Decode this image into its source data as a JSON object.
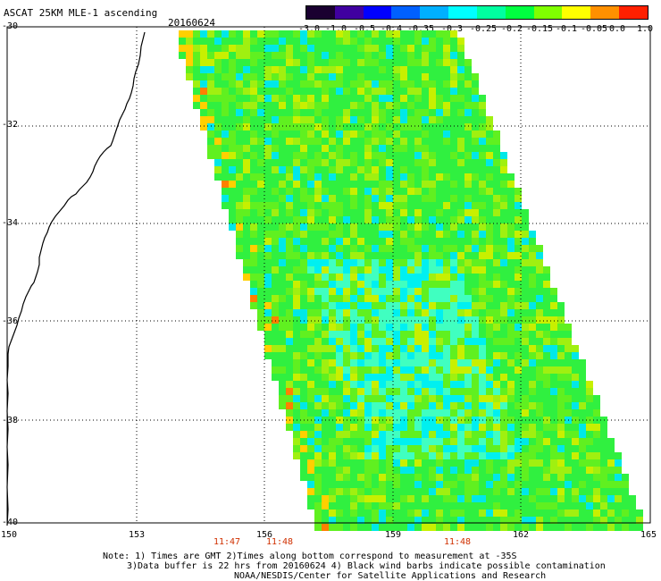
{
  "header": {
    "title": "ASCAT 25KM MLE-1 ascending",
    "date": "20160624"
  },
  "colorbar": {
    "labels": [
      "-3.0",
      "-1.0",
      "-0.5",
      "-0.4",
      "-0.35",
      "-0.3",
      "-0.25",
      "-0.2",
      "-0.15",
      "-0.1",
      "-0.05",
      "0.0",
      "1.0"
    ],
    "colors": [
      "#1a0030",
      "#4000a0",
      "#0000ff",
      "#0060ff",
      "#00b0ff",
      "#00ffff",
      "#00ffa0",
      "#00ff40",
      "#80ff00",
      "#ffff00",
      "#ff9000",
      "#ff2000"
    ]
  },
  "axes": {
    "lat_labels": [
      "-30",
      "-32",
      "-34",
      "-36",
      "-38",
      "-40"
    ],
    "lon_labels": [
      "150",
      "153",
      "156",
      "159",
      "162",
      "165"
    ],
    "times": [
      "11:47",
      "11:48",
      "11:48"
    ]
  },
  "footer": {
    "line1": "Note: 1) Times are GMT 2)Times along bottom correspond to measurement at -35S",
    "line2": "3)Data buffer is 22 hrs from 20160624 4) Black wind barbs indicate possible contamination",
    "line3": "NOAA/NESDIS/Center for Satellite Applications and Research"
  }
}
